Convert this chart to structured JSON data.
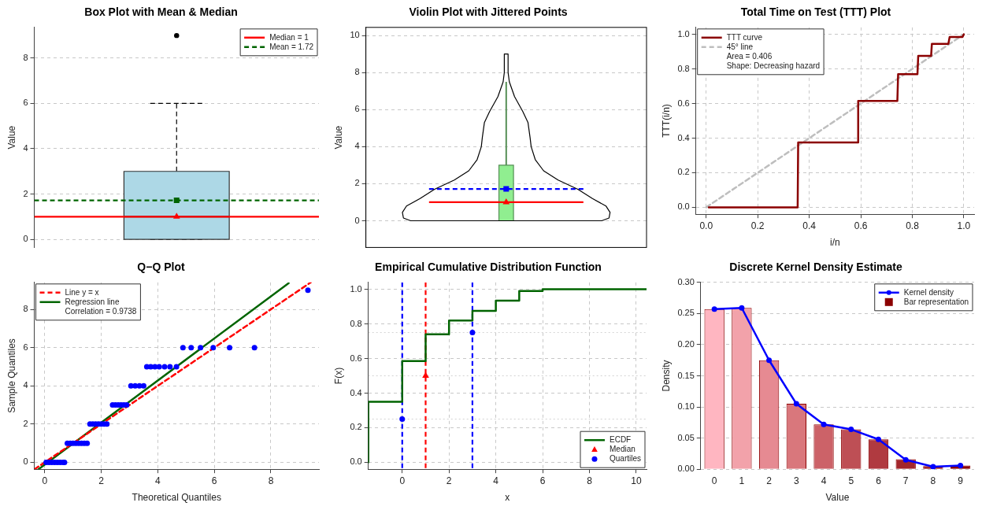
{
  "chart_data": [
    {
      "type": "box",
      "title": "Box Plot with Mean & Median",
      "ylabel": "Value",
      "categories": [
        null
      ],
      "ylim": [
        -0.36,
        9.36
      ],
      "yticks": [
        0,
        2,
        4,
        6,
        8
      ],
      "grid": "y",
      "tick_labels": "y",
      "legend": "top right",
      "series": [
        {
          "type": "box",
          "color": "#add8e6",
          "line_style": "dashed",
          "boxes": [
            {
              "low": 0,
              "q1": 0,
              "median": 1,
              "q3": 3,
              "high": 6,
              "outliers": [
                9
              ]
            }
          ]
        },
        {
          "type": "scatter",
          "color": "#ff0000",
          "marker": "triangle",
          "values": [
            1
          ]
        },
        {
          "type": "scatter",
          "color": "#006400",
          "marker": "square",
          "values": [
            1.72
          ]
        }
      ],
      "ref_lines": [
        {
          "axis": "y",
          "value": 1,
          "label": "Median = 1",
          "color": "#ff0000",
          "line_style": "solid"
        },
        {
          "axis": "y",
          "value": 1.72,
          "label": "Mean = 1.72",
          "color": "#006400",
          "line_style": "dashed"
        }
      ]
    },
    {
      "type": "box",
      "title": "Violin Plot with Jittered Points",
      "ylabel": "Value",
      "categories": [
        null
      ],
      "ylim": [
        -1.44,
        10.44
      ],
      "yticks": [
        0,
        2,
        4,
        6,
        8,
        10
      ],
      "grid": "y",
      "tick_labels": "y",
      "series": [
        {
          "type": "box",
          "color": "#90ee90",
          "line_style": "solid",
          "boxes": [
            {
              "low": 0,
              "q1": 0,
              "median": 1,
              "q3": 3,
              "high": 7.5
            }
          ]
        },
        {
          "type": "scatter",
          "color": "#ff0000",
          "marker": "triangle",
          "values": [
            1
          ]
        },
        {
          "type": "scatter",
          "color": "#0000ff",
          "marker": "square",
          "values": [
            1.72
          ]
        }
      ],
      "ref_lines": [
        {
          "axis": "y",
          "value": 1,
          "color": "#ff0000",
          "line_style": "solid"
        },
        {
          "axis": "y",
          "value": 1.72,
          "color": "#0000ff",
          "line_style": "dashed"
        }
      ]
    },
    {
      "type": "line",
      "title": "Total Time on Test (TTT) Plot",
      "xlabel": "i/n",
      "ylabel": "TTT(i/n)",
      "xlim": [
        -0.04,
        1.04
      ],
      "ylim": [
        -0.04,
        1.04
      ],
      "xticks": [
        {
          "value": 0,
          "label": "0.0"
        },
        0.2,
        0.4,
        0.6,
        0.8,
        {
          "value": 1,
          "label": "1.0"
        }
      ],
      "yticks": [
        {
          "value": 0,
          "label": "0.0"
        },
        0.2,
        0.4,
        0.6,
        0.8,
        {
          "value": 1,
          "label": "1.0"
        }
      ],
      "grid": true,
      "legend": "top left",
      "annotations": [
        "Area = 0.406",
        "Shape: Decreasing hazard"
      ],
      "series": [
        {
          "name": "TTT curve",
          "color": "#8b0000",
          "x": [
            0.01,
            0.355,
            0.357,
            0.588,
            0.59,
            0.742,
            0.745,
            0.82,
            0.823,
            0.873,
            0.876,
            0.94,
            0.945,
            0.995,
            1
          ],
          "values": [
            0,
            0,
            0.375,
            0.375,
            0.615,
            0.615,
            0.77,
            0.77,
            0.875,
            0.875,
            0.945,
            0.945,
            0.985,
            0.985,
            1
          ]
        },
        {
          "name": "45° line",
          "color": "#bebebe",
          "line_style": "dashed",
          "x": [
            0,
            1
          ],
          "values": [
            0,
            1
          ]
        }
      ]
    },
    {
      "type": "scatter",
      "title": "Q−Q Plot",
      "xlabel": "Theoretical Quantiles",
      "ylabel": "Sample Quantiles",
      "xlim": [
        -0.37,
        9.7
      ],
      "ylim": [
        -0.36,
        9.41
      ],
      "xticks": [
        0,
        2,
        4,
        6,
        8
      ],
      "yticks": [
        0,
        2,
        4,
        6,
        8
      ],
      "grid": true,
      "legend": "top left",
      "marker": "circle",
      "annotations": [
        "Correlation = 0.9738"
      ],
      "series": [
        {
          "type": "scatter",
          "color": "#0000ff",
          "x": [
            0.05,
            0.15,
            0.25,
            0.35,
            0.45,
            0.55,
            0.65,
            0.7,
            0.8,
            0.9,
            1.0,
            1.1,
            1.2,
            1.3,
            1.4,
            1.5,
            1.6,
            1.7,
            1.8,
            1.9,
            2.0,
            2.1,
            2.2,
            2.4,
            2.5,
            2.6,
            2.7,
            2.8,
            2.9,
            3.05,
            3.2,
            3.35,
            3.5,
            3.61,
            3.75,
            3.9,
            4.05,
            4.24,
            4.43,
            4.66,
            4.89,
            5.18,
            5.51,
            5.96,
            6.54,
            7.42,
            9.31
          ],
          "values": [
            0,
            0,
            0,
            0,
            0,
            0,
            0,
            0,
            1,
            1,
            1,
            1,
            1,
            1,
            1,
            1,
            2,
            2,
            2,
            2,
            2,
            2,
            2,
            3,
            3,
            3,
            3,
            3,
            3,
            4,
            4,
            4,
            4,
            5,
            5,
            5,
            5,
            5,
            5,
            5,
            6,
            6,
            6,
            6,
            6,
            6,
            9
          ]
        },
        {
          "type": "line",
          "name": "Line y = x",
          "color": "#ff0000",
          "line_style": "dashed",
          "marker": "none",
          "x": [
            -0.36,
            9.41
          ],
          "values": [
            -0.36,
            9.41
          ]
        },
        {
          "type": "line",
          "name": "Regression line",
          "color": "#006400",
          "line_style": "solid",
          "marker": "none",
          "x": [
            -0.22,
            8.63
          ],
          "values": [
            -0.36,
            9.37
          ]
        }
      ]
    },
    {
      "type": "step",
      "title": "Empirical Cumulative Distribution Function",
      "xlabel": "x",
      "ylabel": "F(x)",
      "xlim": [
        -1.45,
        10.44
      ],
      "ylim": [
        -0.04,
        1.04
      ],
      "xticks": [
        0,
        2,
        4,
        6,
        8,
        10
      ],
      "yticks": [
        {
          "value": 0,
          "label": "0.0"
        },
        0.2,
        0.4,
        0.6,
        0.8,
        {
          "value": 1,
          "label": "1.0"
        }
      ],
      "grid": true,
      "legend": "bottom right",
      "series": [
        {
          "name": "ECDF",
          "color": "#006400",
          "x": [
            -1.45,
            0,
            1,
            2,
            3,
            4,
            5,
            6,
            9,
            10.44
          ],
          "values": [
            0,
            0.35,
            0.585,
            0.74,
            0.82,
            0.875,
            0.935,
            0.99,
            1,
            1
          ]
        },
        {
          "type": "scatter",
          "name": "Median",
          "color": "#ff0000",
          "marker": "triangle",
          "x": [
            1
          ],
          "values": [
            0.5
          ]
        },
        {
          "type": "scatter",
          "name": "Quartiles",
          "color": "#0000ff",
          "marker": "circle",
          "x": [
            0,
            3
          ],
          "values": [
            0.25,
            0.75
          ]
        }
      ],
      "ref_lines": [
        {
          "axis": "x",
          "value": 0,
          "color": "#0000ff",
          "line_style": "dashed"
        },
        {
          "axis": "x",
          "value": 1,
          "color": "#ff0000",
          "line_style": "dashed"
        },
        {
          "axis": "x",
          "value": 3,
          "color": "#0000ff",
          "line_style": "dashed"
        },
        {
          "axis": "y",
          "value": 0.25,
          "color": "#d3d3d3",
          "line_style": "dotted"
        },
        {
          "axis": "y",
          "value": 0.5,
          "color": "#d3d3d3",
          "line_style": "dotted"
        },
        {
          "axis": "y",
          "value": 0.75,
          "color": "#d3d3d3",
          "line_style": "dotted"
        }
      ]
    },
    {
      "type": "bar",
      "title": "Discrete Kernel Density Estimate",
      "xlabel": "Value",
      "ylabel": "Density",
      "categories": [
        "0",
        "1",
        "2",
        "3",
        "4",
        "5",
        "6",
        "7",
        "8",
        "9"
      ],
      "ylim": [
        0,
        0.3
      ],
      "yticks": [
        {
          "value": 0,
          "label": "0.00"
        },
        {
          "value": 0.05,
          "label": "0.05"
        },
        {
          "value": 0.1,
          "label": "0.10"
        },
        {
          "value": 0.15,
          "label": "0.15"
        },
        {
          "value": 0.2,
          "label": "0.20"
        },
        {
          "value": 0.25,
          "label": "0.25"
        },
        {
          "value": 0.3,
          "label": "0.30"
        }
      ],
      "grid": "y",
      "legend": "top right",
      "series": [
        {
          "type": "line",
          "name": "Kernel density",
          "color": "#0000ff",
          "marker": "circle",
          "values": [
            0.257,
            0.259,
            0.175,
            0.105,
            0.072,
            0.064,
            0.048,
            0.015,
            0.004,
            0.006
          ]
        },
        {
          "type": "bar",
          "name": "Bar representation",
          "color": "#8b0000",
          "colors": [
            "#ffb6c1",
            "#f2a2aa",
            "#e68a92",
            "#d9777c",
            "#cc6268",
            "#be4f55",
            "#b03a40",
            "#a3262c",
            "#961318",
            "#8b0000"
          ],
          "values": [
            0.257,
            0.259,
            0.175,
            0.105,
            0.072,
            0.064,
            0.048,
            0.016,
            0.005,
            0.006
          ]
        }
      ]
    }
  ]
}
